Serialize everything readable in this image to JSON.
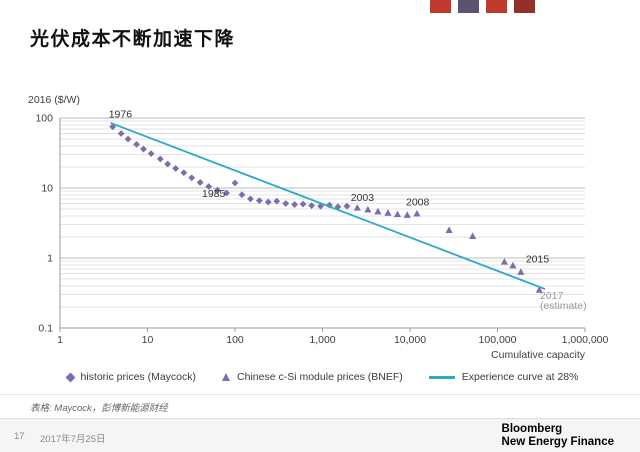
{
  "header": {
    "title": "光伏成本不断加速下降",
    "decor_block_colors": [
      "#c0392b",
      "#5d5370",
      "#c0392b",
      "#943126"
    ]
  },
  "chart_data": {
    "type": "scatter",
    "title": "",
    "ylabel": "2016 ($/W)",
    "xlabel": "Cumulative capacity",
    "x_scale": "log",
    "y_scale": "log",
    "xlim": [
      1,
      1000000
    ],
    "ylim": [
      0.1,
      100
    ],
    "grid": "horizontal-log-minor",
    "legend_position": "bottom",
    "x_ticks": [
      {
        "v": 1,
        "label": "1"
      },
      {
        "v": 10,
        "label": "10"
      },
      {
        "v": 100,
        "label": "100"
      },
      {
        "v": 1000,
        "label": "1,000"
      },
      {
        "v": 10000,
        "label": "10,000"
      },
      {
        "v": 100000,
        "label": "100,000"
      },
      {
        "v": 1000000,
        "label": "1,000,000"
      }
    ],
    "y_ticks": [
      {
        "v": 100,
        "label": "100"
      },
      {
        "v": 10,
        "label": "10"
      },
      {
        "v": 1,
        "label": "1"
      },
      {
        "v": 0.1,
        "label": "0.1"
      }
    ],
    "series": [
      {
        "name": "historic prices (Maycock)",
        "type": "scatter",
        "marker": "diamond",
        "color": "#7d6daf",
        "points": [
          [
            4,
            75
          ],
          [
            5,
            60
          ],
          [
            6,
            50
          ],
          [
            7.5,
            42
          ],
          [
            9,
            36
          ],
          [
            11,
            31
          ],
          [
            14,
            26
          ],
          [
            17,
            22
          ],
          [
            21,
            19
          ],
          [
            26,
            16.5
          ],
          [
            32,
            14
          ],
          [
            40,
            12
          ],
          [
            50,
            10.5
          ],
          [
            63,
            9.3
          ],
          [
            80,
            8.5
          ],
          [
            100,
            11.8
          ],
          [
            120,
            8.0
          ],
          [
            150,
            7.0
          ],
          [
            190,
            6.6
          ],
          [
            240,
            6.3
          ],
          [
            300,
            6.5
          ],
          [
            380,
            6.0
          ],
          [
            480,
            5.8
          ],
          [
            600,
            5.9
          ],
          [
            750,
            5.6
          ],
          [
            950,
            5.5
          ],
          [
            1200,
            5.7
          ],
          [
            1500,
            5.4
          ],
          [
            1900,
            5.5
          ]
        ]
      },
      {
        "name": "Chinese c-Si module prices (BNEF)",
        "type": "scatter",
        "marker": "triangle",
        "color": "#7d6daf",
        "points": [
          [
            2500,
            5.2
          ],
          [
            3300,
            4.9
          ],
          [
            4300,
            4.6
          ],
          [
            5600,
            4.4
          ],
          [
            7200,
            4.2
          ],
          [
            9300,
            4.1
          ],
          [
            12000,
            4.3
          ],
          [
            28000,
            2.5
          ],
          [
            52000,
            2.05
          ],
          [
            120000,
            0.88
          ],
          [
            150000,
            0.78
          ],
          [
            185000,
            0.63
          ],
          [
            300000,
            0.35
          ]
        ]
      },
      {
        "name": "Experience curve at 28%",
        "type": "line",
        "marker": "none",
        "color": "#2ca9c9",
        "points": [
          [
            3.8,
            85
          ],
          [
            350000,
            0.36
          ]
        ]
      }
    ],
    "annotations": [
      {
        "lines": [
          "1976"
        ],
        "x": 3.8,
        "y": 75,
        "dx": -2,
        "dy": -9,
        "anchor": "start",
        "color": "#333333"
      },
      {
        "lines": [
          "1985"
        ],
        "x": 42,
        "y": 8.0,
        "dx": 0,
        "dy": 2,
        "anchor": "start",
        "color": "#333333"
      },
      {
        "lines": [
          "2003"
        ],
        "x": 2100,
        "y": 6.5,
        "dx": 0,
        "dy": 0,
        "anchor": "start",
        "color": "#333333"
      },
      {
        "lines": [
          "2008"
        ],
        "x": 9000,
        "y": 5.6,
        "dx": 0,
        "dy": 0,
        "anchor": "start",
        "color": "#333333"
      },
      {
        "lines": [
          "2015"
        ],
        "x": 200000,
        "y": 0.92,
        "dx": 2,
        "dy": 2,
        "anchor": "start",
        "color": "#333333"
      },
      {
        "lines": [
          "2017",
          "(estimate)"
        ],
        "x": 290000,
        "y": 0.26,
        "dx": 2,
        "dy": 0,
        "anchor": "start",
        "color": "#949aa0"
      }
    ]
  },
  "source": {
    "note": "表格:  Maycock，彭博新能源财经"
  },
  "footer": {
    "page_number": "17",
    "date": "2017年7月25日",
    "brand_line1": "Bloomberg",
    "brand_line2": "New Energy Finance"
  }
}
